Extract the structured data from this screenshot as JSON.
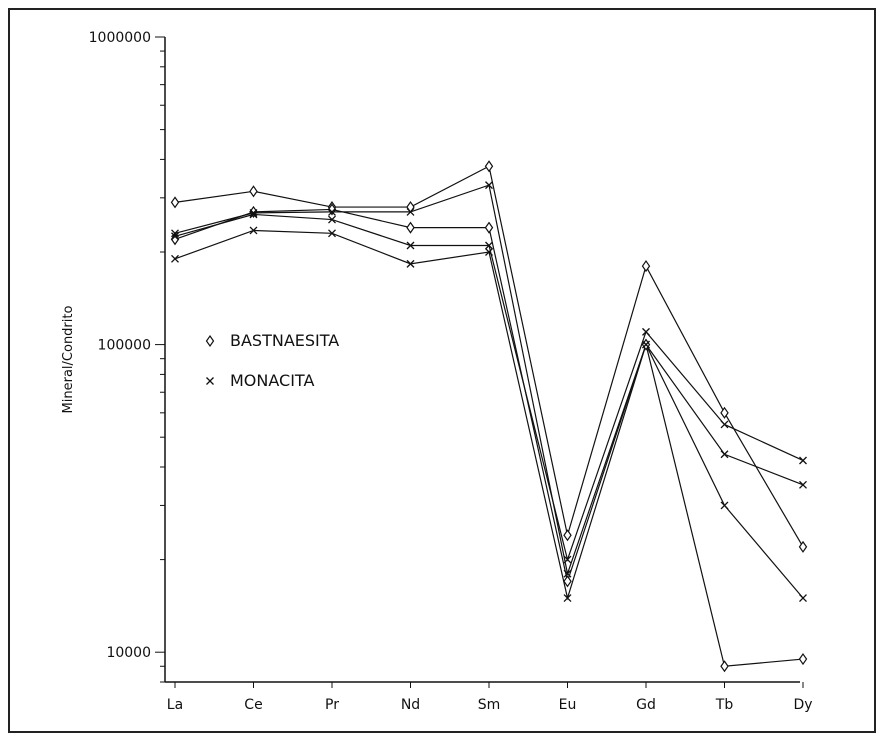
{
  "chart_data": {
    "type": "line",
    "ylabel": "Mineral/Condrito",
    "yscale": "log",
    "ylim": [
      8000,
      1000000
    ],
    "yticks": [
      {
        "value": 10000,
        "label": "10000"
      },
      {
        "value": 100000,
        "label": "100000"
      },
      {
        "value": 1000000,
        "label": "1000000"
      }
    ],
    "categories": [
      "La",
      "Ce",
      "Pr",
      "Nd",
      "Sm",
      "Eu",
      "Gd",
      "Tb",
      "Dy"
    ],
    "legend": [
      {
        "label": "BASTNAESITA",
        "marker": "diamond"
      },
      {
        "label": "MONACITA",
        "marker": "x"
      }
    ],
    "legend_placement": "left-middle",
    "grid": false,
    "series": [
      {
        "marker": "diamond",
        "values": [
          290000,
          315000,
          280000,
          280000,
          380000,
          24000,
          180000,
          60000,
          22000
        ]
      },
      {
        "marker": "diamond",
        "values": [
          220000,
          270000,
          275000,
          240000,
          240000,
          17000,
          100000,
          9000,
          9500
        ]
      },
      {
        "marker": "x",
        "values": [
          225000,
          265000,
          255000,
          210000,
          210000,
          20000,
          110000,
          55000,
          42000
        ]
      },
      {
        "marker": "x",
        "values": [
          190000,
          235000,
          230000,
          183000,
          200000,
          15000,
          100000,
          30000,
          15000
        ]
      },
      {
        "marker": "x",
        "values": [
          230000,
          268000,
          270000,
          270000,
          330000,
          18000,
          100000,
          44000,
          35000
        ]
      }
    ]
  }
}
